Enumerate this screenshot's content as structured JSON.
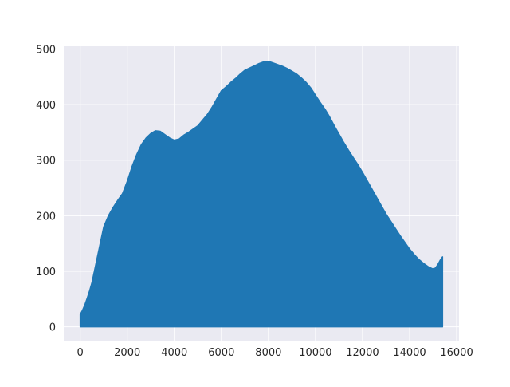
{
  "chart_data": {
    "type": "area",
    "title": "",
    "xlabel": "",
    "ylabel": "",
    "xlim": [
      -700,
      16100
    ],
    "ylim": [
      -25,
      505
    ],
    "xticks": [
      0,
      2000,
      4000,
      6000,
      8000,
      10000,
      12000,
      14000,
      16000
    ],
    "yticks": [
      0,
      100,
      200,
      300,
      400,
      500
    ],
    "xtick_labels": [
      "0",
      "2000",
      "4000",
      "6000",
      "8000",
      "10000",
      "12000",
      "14000",
      "16000"
    ],
    "ytick_labels": [
      "0",
      "100",
      "200",
      "300",
      "400",
      "500"
    ],
    "grid": true,
    "colors": {
      "background": "#eaeaf2",
      "grid": "#ffffff",
      "series": "#1f77b4",
      "text": "#262626"
    },
    "series": [
      {
        "x": [
          0,
          100,
          200,
          300,
          400,
          500,
          600,
          700,
          800,
          900,
          1000,
          1200,
          1400,
          1600,
          1800,
          2000,
          2200,
          2400,
          2600,
          2800,
          3000,
          3200,
          3400,
          3600,
          3800,
          4000,
          4200,
          4400,
          4600,
          4800,
          5000,
          5200,
          5400,
          5600,
          5800,
          6000,
          6200,
          6400,
          6600,
          6800,
          7000,
          7200,
          7400,
          7600,
          7800,
          8000,
          8200,
          8400,
          8600,
          8800,
          9000,
          9200,
          9400,
          9600,
          9800,
          10000,
          10200,
          10400,
          10600,
          10800,
          11000,
          11200,
          11400,
          11600,
          11800,
          12000,
          12200,
          12400,
          12600,
          12800,
          13000,
          13200,
          13400,
          13600,
          13800,
          14000,
          14200,
          14400,
          14600,
          14800,
          15000,
          15100,
          15200,
          15300,
          15400
        ],
        "y": [
          22,
          30,
          40,
          52,
          65,
          80,
          100,
          120,
          140,
          160,
          180,
          200,
          215,
          228,
          240,
          262,
          288,
          310,
          328,
          340,
          348,
          353,
          352,
          346,
          340,
          336,
          338,
          345,
          350,
          356,
          362,
          372,
          382,
          395,
          410,
          425,
          432,
          440,
          447,
          455,
          462,
          466,
          470,
          474,
          477,
          478,
          475,
          472,
          469,
          465,
          460,
          455,
          448,
          440,
          430,
          417,
          404,
          392,
          378,
          362,
          347,
          332,
          318,
          305,
          292,
          278,
          263,
          248,
          233,
          218,
          203,
          190,
          177,
          164,
          152,
          140,
          130,
          121,
          114,
          108,
          104,
          106,
          112,
          120,
          126
        ]
      }
    ]
  }
}
